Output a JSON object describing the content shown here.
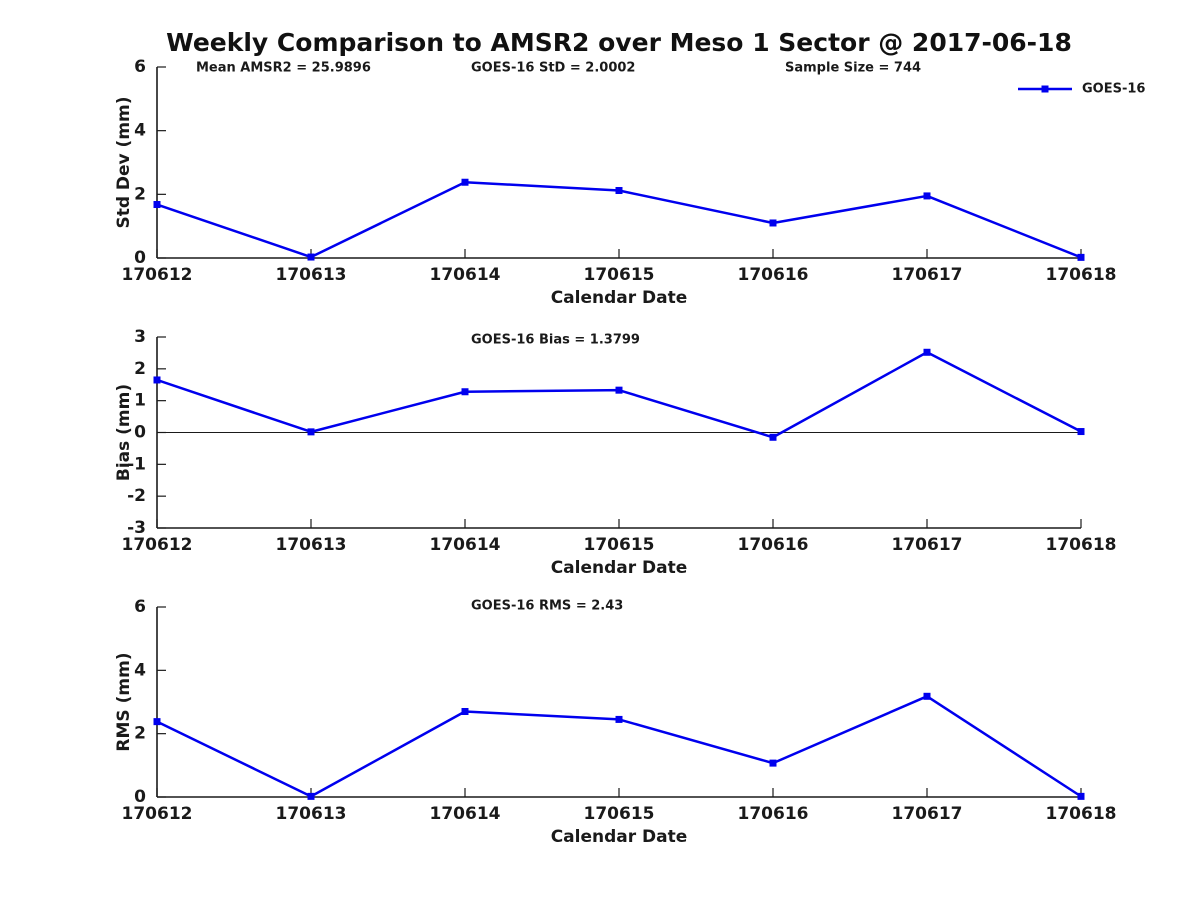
{
  "figure": {
    "title": "Weekly Comparison to AMSR2 over Meso 1 Sector @ 2017-06-18"
  },
  "colors": {
    "series": "#0000EE",
    "axis": "#1a1a1a",
    "text": "#1a1a1a"
  },
  "legend": {
    "label": "GOES-16"
  },
  "chart_data": [
    {
      "type": "line",
      "ylabel": "Std Dev (mm)",
      "xlabel": "Calendar Date",
      "categories": [
        "170612",
        "170613",
        "170614",
        "170615",
        "170616",
        "170617",
        "170618"
      ],
      "series": [
        {
          "name": "GOES-16",
          "values": [
            1.68,
            0.03,
            2.38,
            2.12,
            1.1,
            1.95,
            0.02
          ]
        }
      ],
      "ylim": [
        0,
        6
      ],
      "yticks": [
        0,
        2,
        4,
        6
      ],
      "zero_line": false,
      "grid": false,
      "show_legend": true,
      "legend_position": "top-right",
      "annotations": [
        "Mean AMSR2 = 25.9896",
        "GOES-16 StD = 2.0002",
        "Sample Size = 744"
      ]
    },
    {
      "type": "line",
      "ylabel": "Bias (mm)",
      "xlabel": "Calendar Date",
      "categories": [
        "170612",
        "170613",
        "170614",
        "170615",
        "170616",
        "170617",
        "170618"
      ],
      "series": [
        {
          "name": "GOES-16",
          "values": [
            1.65,
            0.02,
            1.28,
            1.33,
            -0.15,
            2.52,
            0.03
          ]
        }
      ],
      "ylim": [
        -3,
        3
      ],
      "yticks": [
        -3,
        -2,
        -1,
        0,
        1,
        2,
        3
      ],
      "zero_line": true,
      "grid": false,
      "show_legend": false,
      "annotations": [
        "GOES-16 Bias  = 1.3799"
      ]
    },
    {
      "type": "line",
      "ylabel": "RMS (mm)",
      "xlabel": "Calendar Date",
      "categories": [
        "170612",
        "170613",
        "170614",
        "170615",
        "170616",
        "170617",
        "170618"
      ],
      "series": [
        {
          "name": "GOES-16",
          "values": [
            2.38,
            0.02,
            2.7,
            2.45,
            1.07,
            3.18,
            0.02
          ]
        }
      ],
      "ylim": [
        0,
        6
      ],
      "yticks": [
        0,
        2,
        4,
        6
      ],
      "zero_line": false,
      "grid": false,
      "show_legend": false,
      "annotations": [
        "GOES-16 RMS = 2.43"
      ]
    }
  ]
}
